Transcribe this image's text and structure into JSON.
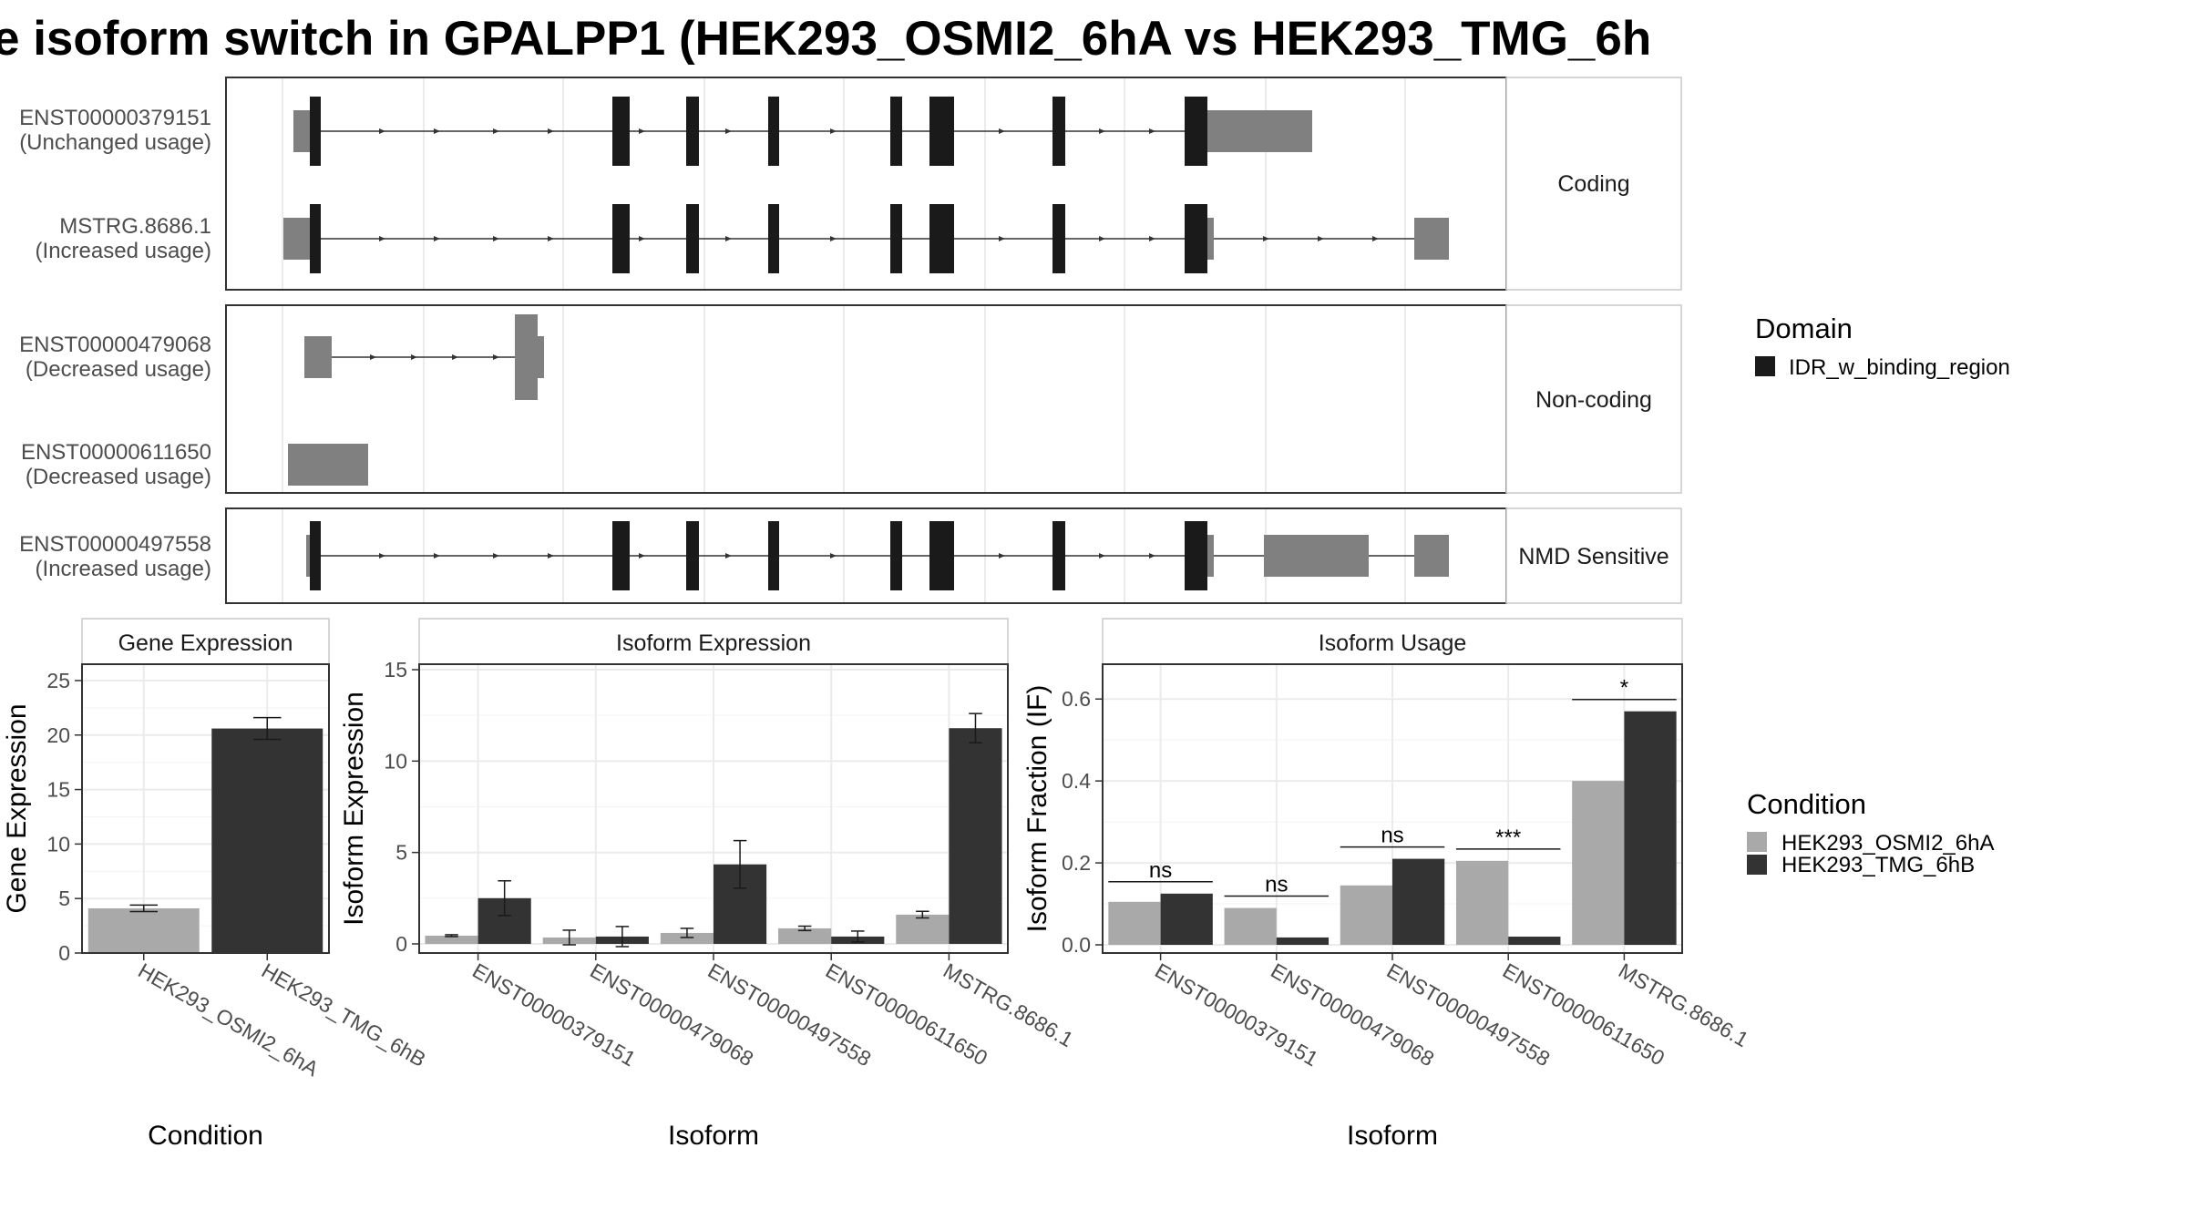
{
  "title": "e isoform switch in GPALPP1 (HEK293_OSMI2_6hA vs HEK293_TMG_6h",
  "colors": {
    "domain": "#1a1a1a",
    "utr": "#808080",
    "condition_a": "#a9a9a9",
    "condition_b": "#333333",
    "grid": "#ebebeb",
    "panel_border": "#333333"
  },
  "structure_panels": [
    {
      "label": "Coding",
      "isoforms": [
        {
          "id": "ENST00000379151",
          "usage": "(Unchanged usage)"
        },
        {
          "id": "MSTRG.8686.1",
          "usage": "(Increased usage)"
        }
      ]
    },
    {
      "label": "Non-coding",
      "isoforms": [
        {
          "id": "ENST00000479068",
          "usage": "(Decreased usage)"
        },
        {
          "id": "ENST00000611650",
          "usage": "(Decreased usage)"
        }
      ]
    },
    {
      "label": "NMD Sensitive",
      "isoforms": [
        {
          "id": "ENST00000497558",
          "usage": "(Increased usage)"
        }
      ]
    }
  ],
  "legend_domain": {
    "title": "Domain",
    "items": [
      {
        "label": "IDR_w_binding_region",
        "color": "#1a1a1a"
      }
    ]
  },
  "legend_condition": {
    "title": "Condition",
    "items": [
      {
        "label": "HEK293_OSMI2_6hA",
        "color": "#a9a9a9"
      },
      {
        "label": "HEK293_TMG_6hB",
        "color": "#333333"
      }
    ]
  },
  "chart_data": [
    {
      "type": "bar",
      "strip_title": "Gene Expression",
      "xlabel": "Condition",
      "ylabel": "Gene Expression",
      "ylim": [
        0,
        26.5
      ],
      "yticks": [
        0,
        5,
        10,
        15,
        20,
        25
      ],
      "categories": [
        "HEK293_OSMI2_6hA",
        "HEK293_TMG_6hB"
      ],
      "values": [
        4.1,
        20.6
      ],
      "errors": [
        0.3,
        1.0
      ]
    },
    {
      "type": "bar",
      "strip_title": "Isoform Expression",
      "xlabel": "Isoform",
      "ylabel": "Isoform Expression",
      "ylim": [
        -0.5,
        15.3
      ],
      "yticks": [
        0,
        5,
        10,
        15
      ],
      "categories": [
        "ENST00000379151",
        "ENST00000479068",
        "ENST00000497558",
        "ENST00000611650",
        "MSTRG.8686.1"
      ],
      "series": [
        {
          "name": "HEK293_OSMI2_6hA",
          "values": [
            0.45,
            0.35,
            0.6,
            0.85,
            1.6
          ],
          "errors": [
            0.05,
            0.4,
            0.25,
            0.12,
            0.18
          ]
        },
        {
          "name": "HEK293_TMG_6hB",
          "values": [
            2.5,
            0.4,
            4.35,
            0.4,
            11.8
          ],
          "errors": [
            0.95,
            0.55,
            1.3,
            0.3,
            0.8
          ]
        }
      ]
    },
    {
      "type": "bar",
      "strip_title": "Isoform Usage",
      "xlabel": "Isoform",
      "ylabel": "Isoform Fraction (IF)",
      "ylim": [
        -0.02,
        0.685
      ],
      "yticks": [
        "0.0",
        "0.2",
        "0.4",
        "0.6"
      ],
      "categories": [
        "ENST00000379151",
        "ENST00000479068",
        "ENST00000497558",
        "ENST00000611650",
        "MSTRG.8686.1"
      ],
      "series": [
        {
          "name": "HEK293_OSMI2_6hA",
          "values": [
            0.105,
            0.09,
            0.145,
            0.205,
            0.4
          ]
        },
        {
          "name": "HEK293_TMG_6hB",
          "values": [
            0.125,
            0.018,
            0.21,
            0.02,
            0.57
          ]
        }
      ],
      "significance": [
        "ns",
        "ns",
        "ns",
        "***",
        "*"
      ]
    }
  ]
}
